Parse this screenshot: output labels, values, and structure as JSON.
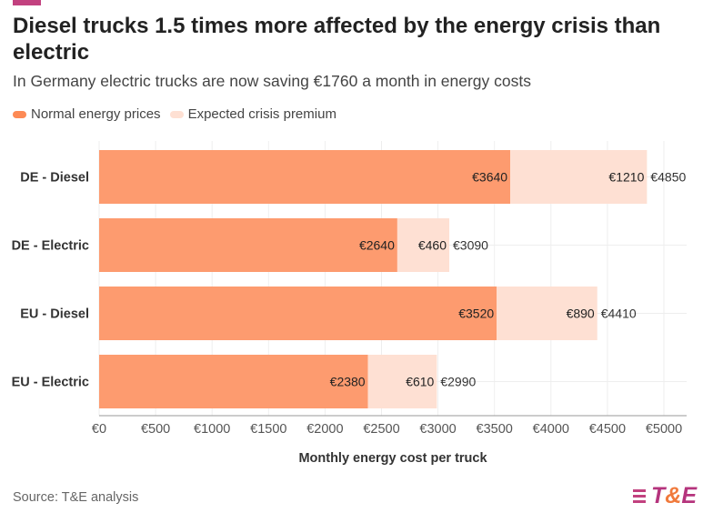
{
  "title": "Diesel trucks 1.5 times more affected by the energy crisis than electric",
  "subtitle": "In Germany electric trucks are now saving €1760 a month in energy costs",
  "source": "Source: T&E analysis",
  "logo": "T&E",
  "colors": {
    "normal": "#fd9b6f",
    "premium": "#fee0d3",
    "accent": "#c2417f"
  },
  "chart_data": {
    "type": "bar",
    "orientation": "horizontal",
    "stacked": true,
    "categories": [
      "DE - Diesel",
      "DE - Electric",
      "EU - Diesel",
      "EU - Electric"
    ],
    "series": [
      {
        "name": "Normal energy prices",
        "values": [
          3640,
          2640,
          3520,
          2380
        ],
        "labels": [
          "€3640",
          "€2640",
          "€3520",
          "€2380"
        ]
      },
      {
        "name": "Expected crisis premium",
        "values": [
          1210,
          460,
          890,
          610
        ],
        "labels": [
          "€1210",
          "€460",
          "€890",
          "€610"
        ]
      }
    ],
    "totals": [
      "€4850",
      "€3090",
      "€4410",
      "€2990"
    ],
    "xlabel": "Monthly energy cost per truck",
    "xlim": [
      0,
      5200
    ],
    "xticks": [
      0,
      500,
      1000,
      1500,
      2000,
      2500,
      3000,
      3500,
      4000,
      4500,
      5000
    ],
    "xtick_labels": [
      "€0",
      "€500",
      "€1000",
      "€1500",
      "€2000",
      "€2500",
      "€3000",
      "€3500",
      "€4000",
      "€4500",
      "€5000"
    ],
    "grid": true,
    "legend_position": "top-left"
  }
}
